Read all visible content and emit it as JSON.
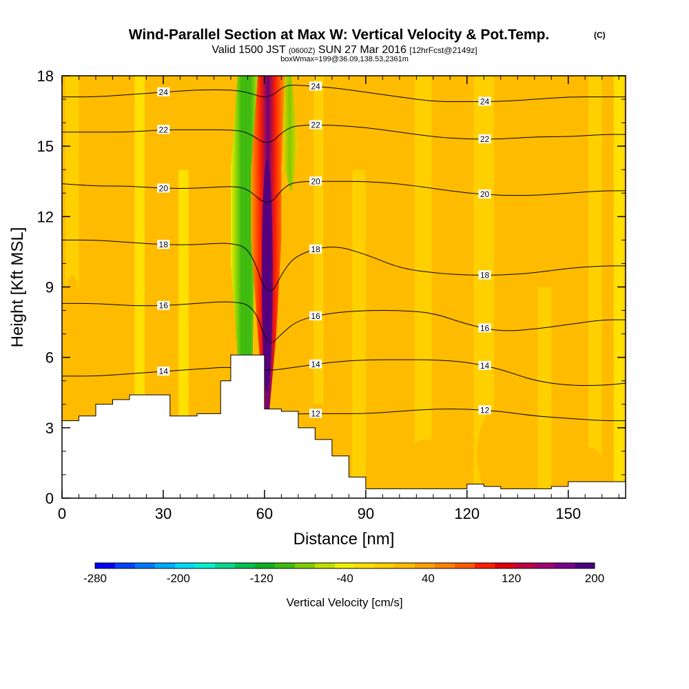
{
  "title": {
    "main": "Wind-Parallel Section at Max W: Vertical Velocity & Pot.Temp.",
    "copyright": "(C)",
    "valid_prefix": "Valid 1500 JST",
    "valid_utc": "(0600Z)",
    "valid_date": "SUN 27 Mar 2016",
    "forecast": "[12hrFcst@2149z]",
    "box_info": "boxWmax=199@36.09,138.53,2361m"
  },
  "chart_data": {
    "type": "heatmap",
    "xlabel": "Distance [nm]",
    "ylabel": "Height [Kft MSL]",
    "xlim": [
      0,
      167
    ],
    "ylim": [
      0,
      18
    ],
    "xticks": [
      0,
      30,
      60,
      90,
      120,
      150
    ],
    "yticks": [
      0,
      3,
      6,
      9,
      12,
      15,
      18
    ],
    "colorbar": {
      "label": "Vertical Velocity [cm/s]",
      "tick_labels": [
        -280,
        -200,
        -120,
        -40,
        40,
        120,
        200
      ],
      "levels": [
        -280,
        -260,
        -240,
        -220,
        -200,
        -180,
        -160,
        -140,
        -120,
        -100,
        -80,
        -60,
        -40,
        -20,
        0,
        20,
        40,
        60,
        80,
        100,
        120,
        140,
        160,
        180,
        200
      ],
      "colors": [
        "#0000ff",
        "#0044ff",
        "#0077ff",
        "#00aaff",
        "#00d8ff",
        "#00f0d0",
        "#00d890",
        "#00c050",
        "#10b020",
        "#40bb10",
        "#80cc00",
        "#c0e000",
        "#f0f000",
        "#ffe000",
        "#ffd000",
        "#ffbb00",
        "#ff9e00",
        "#ff8000",
        "#ff5a00",
        "#ff2000",
        "#e00010",
        "#c00040",
        "#a00070",
        "#7a008a",
        "#4b0082"
      ]
    },
    "theta_contours": [
      {
        "label": "12",
        "x": [
          0,
          10,
          20,
          30,
          40,
          50,
          60,
          70,
          80,
          90,
          100,
          110,
          120,
          130,
          140,
          150,
          160,
          167
        ],
        "y": [
          3.1,
          3.1,
          3.1,
          3.2,
          3.3,
          3.4,
          3.5,
          3.6,
          3.6,
          3.6,
          3.7,
          3.8,
          3.8,
          3.7,
          3.5,
          3.4,
          3.3,
          3.3
        ]
      },
      {
        "label": "14",
        "x": [
          0,
          10,
          20,
          30,
          40,
          50,
          60,
          70,
          80,
          90,
          100,
          110,
          120,
          130,
          140,
          150,
          160,
          167
        ],
        "y": [
          5.2,
          5.2,
          5.3,
          5.4,
          5.5,
          5.6,
          5.4,
          5.6,
          5.8,
          5.9,
          5.9,
          5.9,
          5.8,
          5.5,
          5.0,
          4.8,
          4.8,
          4.9
        ]
      },
      {
        "label": "16",
        "x": [
          0,
          10,
          20,
          30,
          40,
          50,
          57,
          61,
          65,
          70,
          80,
          90,
          100,
          110,
          120,
          130,
          140,
          150,
          160,
          167
        ],
        "y": [
          8.3,
          8.3,
          8.2,
          8.2,
          8.3,
          8.4,
          8.2,
          6.4,
          7.0,
          7.6,
          7.9,
          8.0,
          8.0,
          7.9,
          7.4,
          7.1,
          7.2,
          7.4,
          7.6,
          7.6
        ]
      },
      {
        "label": "18",
        "x": [
          0,
          10,
          20,
          30,
          40,
          50,
          56,
          61,
          66,
          70,
          80,
          90,
          100,
          110,
          120,
          130,
          140,
          150,
          160,
          167
        ],
        "y": [
          11.0,
          11.0,
          10.9,
          10.8,
          10.8,
          10.9,
          10.6,
          8.4,
          9.8,
          10.4,
          10.8,
          10.4,
          9.8,
          9.6,
          9.5,
          9.5,
          9.6,
          9.8,
          9.9,
          9.9
        ]
      },
      {
        "label": "20",
        "x": [
          0,
          10,
          20,
          30,
          40,
          50,
          55,
          61,
          66,
          70,
          80,
          90,
          100,
          110,
          120,
          130,
          140,
          150,
          160,
          167
        ],
        "y": [
          13.4,
          13.3,
          13.3,
          13.2,
          13.2,
          13.3,
          13.2,
          12.4,
          13.3,
          13.5,
          13.5,
          13.5,
          13.4,
          13.2,
          13.0,
          12.9,
          12.9,
          13.0,
          13.1,
          13.1
        ]
      },
      {
        "label": "22",
        "x": [
          0,
          10,
          20,
          30,
          40,
          50,
          55,
          61,
          66,
          70,
          80,
          90,
          100,
          110,
          120,
          130,
          140,
          150,
          160,
          167
        ],
        "y": [
          15.6,
          15.6,
          15.6,
          15.7,
          15.7,
          15.7,
          15.6,
          15.0,
          15.7,
          15.9,
          15.9,
          15.8,
          15.6,
          15.4,
          15.3,
          15.3,
          15.4,
          15.4,
          15.5,
          15.5
        ]
      },
      {
        "label": "24",
        "x": [
          0,
          10,
          20,
          30,
          40,
          50,
          55,
          61,
          66,
          70,
          80,
          90,
          100,
          110,
          120,
          130,
          140,
          150,
          160,
          167
        ],
        "y": [
          17.1,
          17.1,
          17.2,
          17.3,
          17.4,
          17.4,
          17.3,
          17.0,
          17.6,
          17.6,
          17.5,
          17.3,
          17.1,
          16.9,
          16.9,
          16.9,
          17.0,
          17.1,
          17.1,
          17.1
        ]
      }
    ],
    "terrain": {
      "x": [
        0,
        5,
        10,
        15,
        20,
        25,
        32,
        35,
        40,
        47,
        50,
        55,
        60,
        65,
        70,
        75,
        80,
        85,
        90,
        95,
        100,
        105,
        110,
        115,
        120,
        125,
        130,
        135,
        140,
        145,
        150,
        155,
        160,
        167
      ],
      "y": [
        3.3,
        3.5,
        4.0,
        4.2,
        4.4,
        4.4,
        3.5,
        3.5,
        3.6,
        5.0,
        6.1,
        6.1,
        3.8,
        3.7,
        3.0,
        2.5,
        1.8,
        0.9,
        0.4,
        0.4,
        0.4,
        0.4,
        0.4,
        0.4,
        0.6,
        0.5,
        0.4,
        0.4,
        0.4,
        0.5,
        0.7,
        0.7,
        0.7,
        0.7
      ]
    }
  }
}
